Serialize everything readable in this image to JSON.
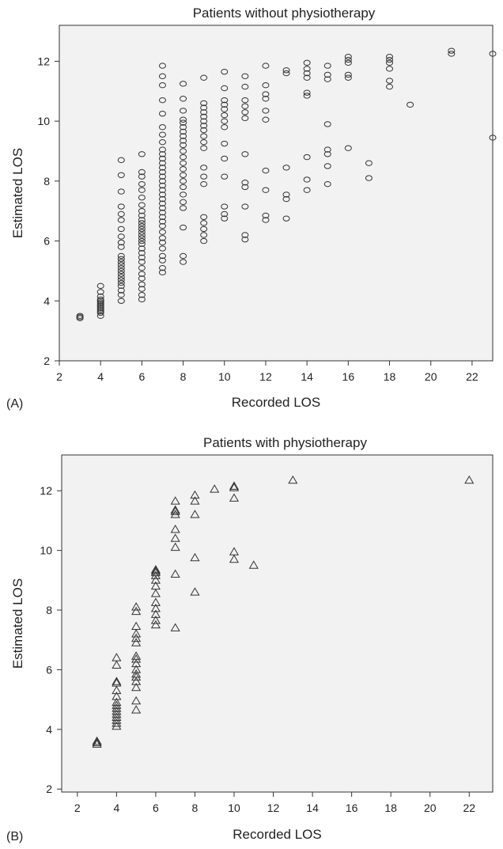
{
  "chart_data": [
    {
      "type": "scatter",
      "panel_label": "(A)",
      "title": "Patients without physiotherapy",
      "xlabel": "Recorded LOS",
      "ylabel": "Estimated LOS",
      "xlim": [
        2,
        23
      ],
      "ylim": [
        2,
        13.2
      ],
      "x_ticks": [
        2,
        4,
        6,
        8,
        10,
        12,
        14,
        16,
        18,
        20,
        22
      ],
      "y_ticks": [
        2,
        4,
        6,
        8,
        10,
        12
      ],
      "marker": "circle",
      "grid": false,
      "background": "#f2f2f2",
      "points_by_x": [
        {
          "x": 3,
          "y": [
            3.42,
            3.46,
            3.5
          ]
        },
        {
          "x": 4,
          "y": [
            3.5,
            3.6,
            3.65,
            3.7,
            3.75,
            3.8,
            3.85,
            3.9,
            3.95,
            4.0,
            4.05,
            4.15,
            4.3,
            4.5
          ]
        },
        {
          "x": 5,
          "y": [
            4.0,
            4.2,
            4.35,
            4.5,
            4.6,
            4.7,
            4.8,
            4.9,
            5.0,
            5.1,
            5.2,
            5.3,
            5.4,
            5.5,
            5.8,
            5.95,
            6.15,
            6.4,
            6.7,
            6.9,
            7.15,
            7.65,
            8.2,
            8.7
          ]
        },
        {
          "x": 6,
          "y": [
            4.05,
            4.2,
            4.4,
            4.55,
            4.75,
            4.9,
            5.1,
            5.3,
            5.45,
            5.6,
            5.75,
            5.9,
            6.0,
            6.1,
            6.2,
            6.3,
            6.4,
            6.5,
            6.6,
            6.7,
            6.85,
            7.0,
            7.2,
            7.45,
            7.7,
            7.9,
            8.15,
            8.3,
            8.9
          ]
        },
        {
          "x": 7,
          "y": [
            4.95,
            5.1,
            5.35,
            5.5,
            5.75,
            5.95,
            6.1,
            6.3,
            6.5,
            6.65,
            6.8,
            6.95,
            7.1,
            7.25,
            7.4,
            7.55,
            7.7,
            7.85,
            8.0,
            8.15,
            8.3,
            8.45,
            8.6,
            8.75,
            8.9,
            9.05,
            9.3,
            9.55,
            9.8,
            10.25,
            10.7,
            11.2,
            11.5,
            11.85
          ]
        },
        {
          "x": 8,
          "y": [
            5.3,
            5.5,
            6.45,
            7.1,
            7.3,
            7.55,
            7.8,
            8.0,
            8.2,
            8.4,
            8.6,
            8.8,
            9.0,
            9.2,
            9.35,
            9.5,
            9.65,
            9.8,
            9.95,
            10.05,
            10.35,
            10.75,
            11.25
          ]
        },
        {
          "x": 9,
          "y": [
            6.0,
            6.2,
            6.4,
            6.6,
            6.8,
            7.9,
            8.15,
            8.45,
            9.1,
            9.3,
            9.5,
            9.7,
            9.85,
            10.0,
            10.15,
            10.3,
            10.45,
            10.6,
            11.45
          ]
        },
        {
          "x": 10,
          "y": [
            6.75,
            6.9,
            7.15,
            8.15,
            8.75,
            9.25,
            9.8,
            10.0,
            10.2,
            10.4,
            10.55,
            10.7,
            11.1,
            11.65
          ]
        },
        {
          "x": 11,
          "y": [
            6.05,
            6.2,
            7.15,
            7.8,
            7.95,
            8.9,
            10.1,
            10.3,
            10.5,
            10.7,
            11.15,
            11.5
          ]
        },
        {
          "x": 12,
          "y": [
            6.7,
            6.85,
            7.7,
            8.35,
            10.05,
            10.35,
            10.75,
            10.9,
            11.2,
            11.85
          ]
        },
        {
          "x": 13,
          "y": [
            6.75,
            7.4,
            7.55,
            8.45,
            11.6,
            11.7
          ]
        },
        {
          "x": 14,
          "y": [
            7.7,
            8.05,
            8.8,
            10.85,
            10.95,
            11.45,
            11.6,
            11.75,
            11.95
          ]
        },
        {
          "x": 15,
          "y": [
            7.9,
            8.5,
            8.9,
            9.05,
            9.9,
            11.4,
            11.55,
            11.85
          ]
        },
        {
          "x": 16,
          "y": [
            9.1,
            11.45,
            11.55,
            11.95,
            12.05,
            12.15
          ]
        },
        {
          "x": 17,
          "y": [
            8.1,
            8.6
          ]
        },
        {
          "x": 18,
          "y": [
            11.15,
            11.35,
            11.75,
            11.95,
            12.05,
            12.15
          ]
        },
        {
          "x": 19,
          "y": [
            10.55
          ]
        },
        {
          "x": 21,
          "y": [
            12.25,
            12.35
          ]
        },
        {
          "x": 23,
          "y": [
            9.45,
            12.25
          ]
        }
      ]
    },
    {
      "type": "scatter",
      "panel_label": "(B)",
      "title": "Patients with physiotherapy",
      "xlabel": "Recorded LOS",
      "ylabel": "Estimated LOS",
      "xlim": [
        1.2,
        23.2
      ],
      "ylim": [
        1.9,
        13.2
      ],
      "x_ticks": [
        2,
        4,
        6,
        8,
        10,
        12,
        14,
        16,
        18,
        20,
        22
      ],
      "y_ticks": [
        2,
        4,
        6,
        8,
        10,
        12
      ],
      "marker": "triangle",
      "grid": false,
      "background": "#f2f2f2",
      "points_by_x": [
        {
          "x": 3,
          "y": [
            3.5,
            3.55,
            3.6
          ]
        },
        {
          "x": 4,
          "y": [
            4.1,
            4.2,
            4.3,
            4.4,
            4.5,
            4.6,
            4.7,
            4.8,
            4.9,
            5.1,
            5.3,
            5.55,
            5.6,
            6.15,
            6.4
          ]
        },
        {
          "x": 5,
          "y": [
            4.65,
            4.95,
            5.4,
            5.6,
            5.75,
            5.85,
            6.0,
            6.2,
            6.35,
            6.45,
            6.9,
            7.05,
            7.2,
            7.45,
            7.95,
            8.1
          ]
        },
        {
          "x": 6,
          "y": [
            7.5,
            7.65,
            7.85,
            8.05,
            8.25,
            8.55,
            8.8,
            9.0,
            9.15,
            9.25,
            9.3,
            9.35
          ]
        },
        {
          "x": 7,
          "y": [
            7.4,
            9.2,
            10.1,
            10.4,
            10.7,
            11.2,
            11.3,
            11.35,
            11.65
          ]
        },
        {
          "x": 8,
          "y": [
            8.6,
            9.75,
            11.2,
            11.65,
            11.85
          ]
        },
        {
          "x": 9,
          "y": [
            12.05
          ]
        },
        {
          "x": 10,
          "y": [
            9.7,
            9.95,
            11.75,
            12.1,
            12.15
          ]
        },
        {
          "x": 11,
          "y": [
            9.5
          ]
        },
        {
          "x": 13,
          "y": [
            12.35
          ]
        },
        {
          "x": 22,
          "y": [
            12.35
          ]
        }
      ]
    }
  ]
}
